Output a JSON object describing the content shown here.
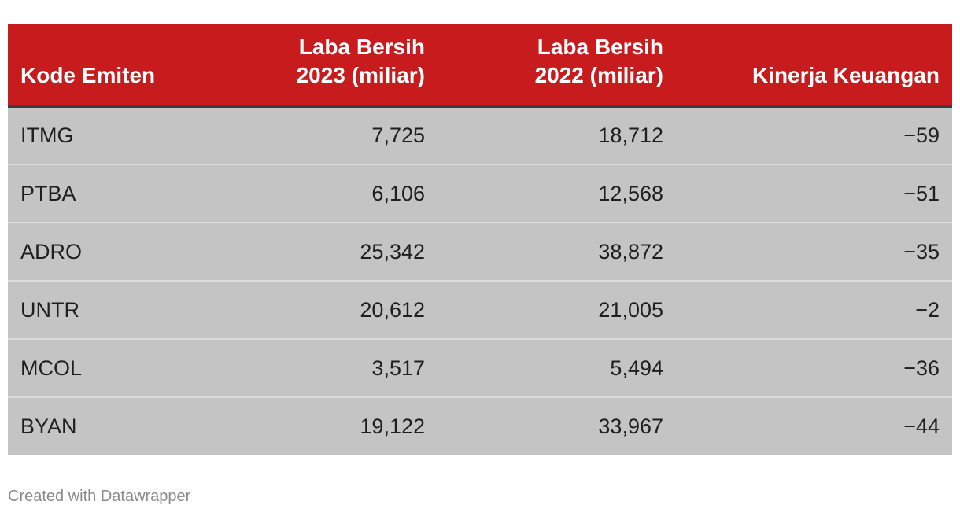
{
  "chart_data": {
    "type": "table",
    "columns": [
      {
        "label_lines": [
          "Kode Emiten"
        ]
      },
      {
        "label_lines": [
          "Laba Bersih",
          "2023 (miliar)"
        ]
      },
      {
        "label_lines": [
          "Laba Bersih",
          "2022 (miliar)"
        ]
      },
      {
        "label_lines": [
          "Kinerja Keuangan"
        ]
      }
    ],
    "rows": [
      {
        "code": "ITMG",
        "laba_2023": "7,725",
        "laba_2022": "18,712",
        "kinerja": "−59"
      },
      {
        "code": "PTBA",
        "laba_2023": "6,106",
        "laba_2022": "12,568",
        "kinerja": "−51"
      },
      {
        "code": "ADRO",
        "laba_2023": "25,342",
        "laba_2022": "38,872",
        "kinerja": "−35"
      },
      {
        "code": "UNTR",
        "laba_2023": "20,612",
        "laba_2022": "21,005",
        "kinerja": "−2"
      },
      {
        "code": "MCOL",
        "laba_2023": "3,517",
        "laba_2022": "5,494",
        "kinerja": "−36"
      },
      {
        "code": "BYAN",
        "laba_2023": "19,122",
        "laba_2022": "33,967",
        "kinerja": "−44"
      }
    ]
  },
  "footer": {
    "credit": "Created with Datawrapper"
  },
  "colors": {
    "header_bg": "#c71b1d",
    "header_text": "#ffffff",
    "row_bg": "#c4c4c4",
    "footer_text": "#8a8a8a"
  }
}
